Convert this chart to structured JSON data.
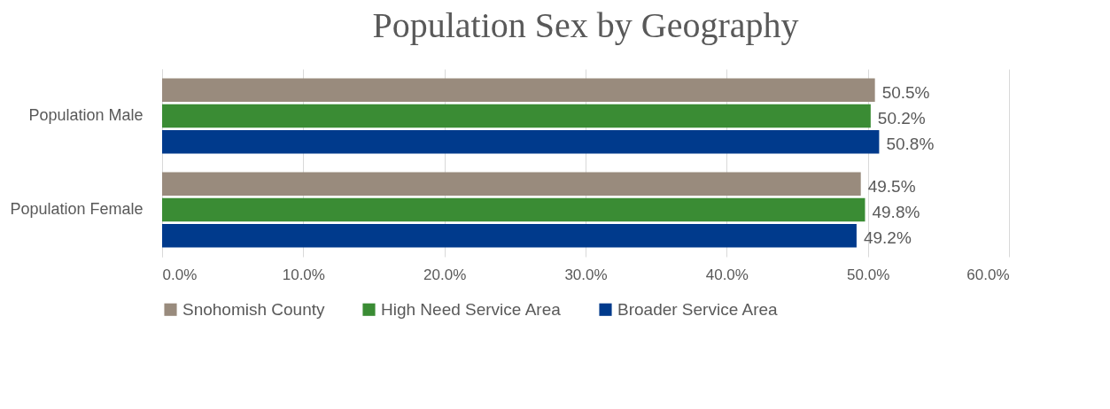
{
  "chart_data": {
    "type": "bar",
    "orientation": "horizontal",
    "title": "Population Sex by Geography",
    "categories": [
      "Population Male",
      "Population Female"
    ],
    "series": [
      {
        "name": "Snohomish County",
        "color": "#998b7d",
        "values": [
          50.5,
          49.5
        ],
        "value_labels": [
          "50.5%",
          "49.5%"
        ]
      },
      {
        "name": "High Need Service Area",
        "color": "#3a8c34",
        "values": [
          50.2,
          49.8
        ],
        "value_labels": [
          "50.2%",
          "49.8%"
        ]
      },
      {
        "name": "Broader Service Area",
        "color": "#003a8c",
        "values": [
          50.8,
          49.2
        ],
        "value_labels": [
          "50.8%",
          "49.2%"
        ]
      }
    ],
    "xlim": [
      0,
      60
    ],
    "xticks": [
      {
        "value": 0,
        "label": "0.0%"
      },
      {
        "value": 10,
        "label": "10.0%"
      },
      {
        "value": 20,
        "label": "20.0%"
      },
      {
        "value": 30,
        "label": "30.0%"
      },
      {
        "value": 40,
        "label": "40.0%"
      },
      {
        "value": 50,
        "label": "50.0%"
      },
      {
        "value": 60,
        "label": "60.0%"
      }
    ],
    "grid": true,
    "legend": "bottom"
  }
}
